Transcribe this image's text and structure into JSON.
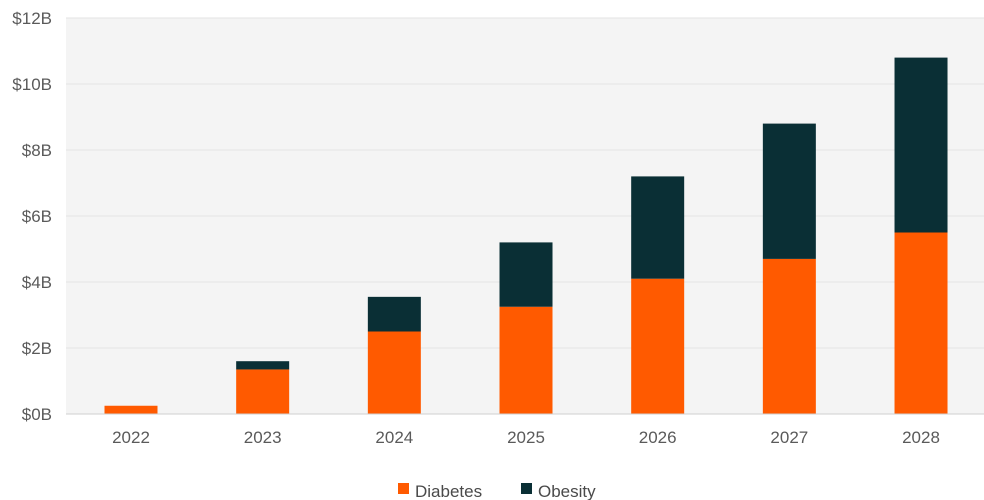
{
  "chart_data": {
    "type": "bar",
    "stacked": true,
    "categories": [
      "2022",
      "2023",
      "2024",
      "2025",
      "2026",
      "2027",
      "2028"
    ],
    "series": [
      {
        "name": "Diabetes",
        "color": "#ff5a00",
        "values": [
          0.25,
          1.35,
          2.5,
          3.25,
          4.1,
          4.7,
          5.5
        ]
      },
      {
        "name": "Obesity",
        "color": "#0a2f35",
        "values": [
          0,
          0.25,
          1.05,
          1.95,
          3.1,
          4.1,
          5.3
        ]
      }
    ],
    "title": "",
    "xlabel": "",
    "ylabel": "",
    "ylim": [
      0,
      12
    ],
    "yticks": [
      {
        "value": 0,
        "label": "$0B"
      },
      {
        "value": 2,
        "label": "$2B"
      },
      {
        "value": 4,
        "label": "$4B"
      },
      {
        "value": 6,
        "label": "$6B"
      },
      {
        "value": 8,
        "label": "$8B"
      },
      {
        "value": 10,
        "label": "$10B"
      },
      {
        "value": 12,
        "label": "$12B"
      }
    ],
    "grid": true,
    "legend_position": "bottom-center",
    "background": "#f4f4f4",
    "grid_color": "#e3e3e3"
  }
}
